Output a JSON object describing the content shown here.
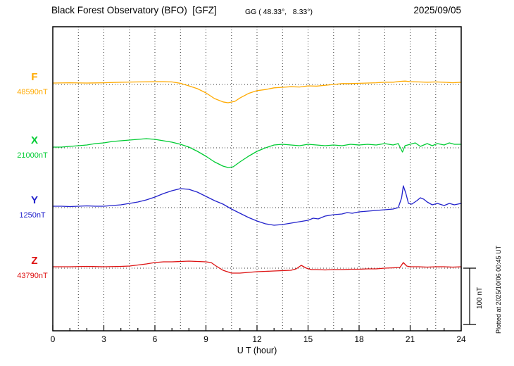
{
  "header": {
    "title": "Black Forest Observatory (BFO)  [GFZ]",
    "coords": "GG ( 48.33°,   8.33°)",
    "date": "2025/09/05"
  },
  "footer_note": "Plotted at 2025/10/06 00:45 UT",
  "scale_bar": {
    "label": "100 nT",
    "nT": 100
  },
  "chart_data": {
    "type": "line",
    "title": "Black Forest Observatory (BFO)  [GFZ]",
    "x_axis": {
      "label": "U T (hour)",
      "min": 0,
      "max": 24,
      "major_ticks": [
        0,
        3,
        6,
        9,
        12,
        15,
        18,
        21,
        24
      ],
      "minor_step": 1,
      "grid_step": 1.5
    },
    "y_scale": {
      "nT_per_division": 100
    },
    "series": [
      {
        "name": "F",
        "color": "#ffaa00",
        "baseline_label": "48590nT",
        "baseline_nT": 48590,
        "x": [
          0,
          1,
          2,
          3,
          4,
          5,
          6,
          6.5,
          7,
          7.5,
          8,
          8.5,
          9,
          9.5,
          10,
          10.3,
          10.7,
          11,
          11.5,
          12,
          12.5,
          13,
          13.5,
          14,
          14.5,
          15,
          15.5,
          16,
          16.5,
          17,
          17.5,
          18,
          19,
          19.5,
          20,
          20.4,
          20.7,
          21,
          21.5,
          22,
          22.5,
          23,
          23.5,
          24
        ],
        "offset_nT": [
          2.5,
          3,
          2.5,
          3,
          4,
          4.5,
          5,
          5,
          4.5,
          2,
          -2.5,
          -7.5,
          -15,
          -25,
          -31,
          -32.5,
          -30,
          -24,
          -16,
          -11,
          -9,
          -6,
          -5,
          -4,
          -4.5,
          -2.5,
          -3,
          -1.5,
          0,
          1.5,
          1.5,
          2,
          3,
          4,
          4,
          5.5,
          6,
          5,
          4.5,
          4,
          4.5,
          4,
          3,
          4
        ]
      },
      {
        "name": "X",
        "color": "#00cc33",
        "baseline_label": "21000nT",
        "baseline_nT": 21000,
        "x": [
          0,
          0.5,
          1,
          1.5,
          2,
          2.5,
          3,
          3.5,
          4,
          4.5,
          5,
          5.5,
          6,
          6.5,
          7,
          7.5,
          8,
          8.5,
          9,
          9.5,
          10,
          10.3,
          10.6,
          11,
          11.5,
          12,
          12.5,
          13,
          13.5,
          14,
          14.5,
          15,
          15.5,
          16,
          16.5,
          17,
          17.5,
          18,
          18.5,
          19,
          19.5,
          20,
          20.3,
          20.55,
          20.7,
          21,
          21.3,
          21.6,
          22,
          22.3,
          22.6,
          23,
          23.3,
          23.6,
          24
        ],
        "offset_nT": [
          1.2,
          1.2,
          2.5,
          3.8,
          5,
          7.5,
          8.8,
          11.2,
          12.5,
          13.8,
          15,
          16.2,
          15,
          12.5,
          10,
          6.2,
          1.2,
          -6.2,
          -15,
          -25,
          -32.5,
          -35,
          -33.8,
          -25,
          -15,
          -6.2,
          0,
          5,
          6.2,
          5,
          3.8,
          6.2,
          5,
          3.8,
          5,
          3.8,
          6.2,
          5,
          6.2,
          5,
          7.5,
          5,
          7.5,
          -7.5,
          3.8,
          6.2,
          8.8,
          2.5,
          7.5,
          3.8,
          7.5,
          5,
          8.8,
          6.2,
          6.2
        ]
      },
      {
        "name": "Y",
        "color": "#2222cc",
        "baseline_label": "1250nT",
        "baseline_nT": 1250,
        "x": [
          0,
          0.5,
          1,
          1.5,
          2,
          2.5,
          3,
          3.5,
          4,
          4.5,
          5,
          5.5,
          6,
          6.5,
          7,
          7.5,
          8,
          8.5,
          9,
          9.5,
          10,
          10.5,
          11,
          11.5,
          12,
          12.5,
          13,
          13.5,
          14,
          14.5,
          15,
          15.3,
          15.6,
          16,
          16.5,
          17,
          17.3,
          17.6,
          18,
          18.5,
          19,
          19.5,
          20,
          20.3,
          20.5,
          20.6,
          20.75,
          20.9,
          21.1,
          21.4,
          21.6,
          21.8,
          22,
          22.3,
          22.6,
          23,
          23.3,
          23.6,
          24
        ],
        "offset_nT": [
          2.5,
          2.5,
          1.9,
          2.5,
          3.1,
          2.5,
          2.5,
          3.8,
          5,
          7.5,
          10,
          13.8,
          18.8,
          25,
          30,
          33.8,
          32.5,
          27.5,
          20,
          12.5,
          6.2,
          -2.5,
          -10,
          -17.5,
          -23.8,
          -28.8,
          -31.2,
          -30,
          -27.5,
          -25,
          -22.5,
          -18.8,
          -20,
          -15,
          -12.5,
          -11.2,
          -8.8,
          -10,
          -7.5,
          -6.2,
          -5,
          -3.8,
          -2.5,
          0,
          17.5,
          38.8,
          25,
          7.5,
          6.2,
          12.5,
          17.5,
          15,
          10,
          5,
          7.5,
          3.8,
          7.5,
          5,
          7.5
        ]
      },
      {
        "name": "Z",
        "color": "#dd1111",
        "baseline_label": "43790nT",
        "baseline_nT": 43790,
        "x": [
          0,
          1,
          2,
          3,
          4,
          4.5,
          5,
          5.5,
          6,
          6.5,
          7,
          7.5,
          8,
          8.5,
          9,
          9.3,
          9.6,
          10,
          10.5,
          11,
          11.5,
          12,
          12.5,
          13,
          13.5,
          14,
          14.3,
          14.6,
          14.9,
          15.2,
          15.5,
          16,
          16.5,
          17,
          17.5,
          18,
          18.5,
          19,
          19.5,
          20,
          20.4,
          20.6,
          20.8,
          21,
          21.5,
          22,
          22.5,
          23,
          23.5,
          24
        ],
        "offset_nT": [
          2.5,
          2.5,
          3.1,
          2.5,
          3.1,
          3.8,
          5.6,
          7.5,
          10,
          11.2,
          11.2,
          11.9,
          12.5,
          11.9,
          11.2,
          10,
          3.8,
          -3.8,
          -8.8,
          -8.8,
          -7.5,
          -6.2,
          -5.6,
          -5,
          -4.4,
          -3.8,
          -1.2,
          5,
          0,
          -2.5,
          -2.5,
          -3.1,
          -2.5,
          -2.5,
          -1.9,
          -1.9,
          -1.2,
          -1.2,
          0,
          0.6,
          1.2,
          10,
          3.8,
          2.5,
          2.5,
          1.9,
          2.5,
          2.5,
          1.9,
          2.5
        ]
      }
    ]
  }
}
